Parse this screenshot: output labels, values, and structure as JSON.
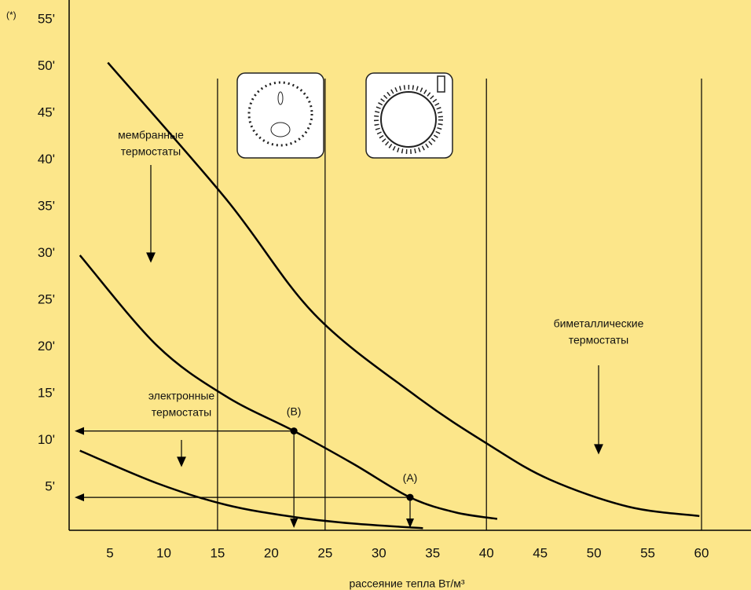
{
  "chart_data": {
    "type": "line",
    "x_label": "рассеяние тепла Вт/м³",
    "y_note": "(*)",
    "xlim": [
      1.2,
      64.6
    ],
    "ylim": [
      0,
      57
    ],
    "xticks": [
      5,
      10,
      15,
      20,
      25,
      30,
      35,
      40,
      45,
      50,
      55,
      60
    ],
    "yticks": [
      {
        "value": 5,
        "label": "5'"
      },
      {
        "value": 10,
        "label": "10'"
      },
      {
        "value": 15,
        "label": "15'"
      },
      {
        "value": 20,
        "label": "20'"
      },
      {
        "value": 25,
        "label": "25'"
      },
      {
        "value": 30,
        "label": "30'"
      },
      {
        "value": 35,
        "label": "35'"
      },
      {
        "value": 40,
        "label": "40'"
      },
      {
        "value": 45,
        "label": "45'"
      },
      {
        "value": 50,
        "label": "50'"
      },
      {
        "value": 55,
        "label": "55'"
      }
    ],
    "vlines": [
      15,
      25,
      40,
      60
    ],
    "series": [
      {
        "color": "#000000",
        "x": [
          4.8,
          15.8,
          24,
          33.5,
          40.4,
          45.9,
          53.2,
          59.8
        ],
        "values": [
          50.4,
          35.8,
          23.5,
          14.7,
          9.4,
          5.8,
          2.9,
          1.9
        ]
      },
      {
        "color": "#000000",
        "x": [
          2.2,
          9.4,
          15.8,
          22.1,
          27.6,
          32.9,
          37.1,
          41.0
        ],
        "values": [
          29.8,
          20.1,
          14.7,
          11.0,
          7.5,
          3.9,
          2.3,
          1.6
        ]
      },
      {
        "color": "#000000",
        "x": [
          2.2,
          9.4,
          15.8,
          22.1,
          27.6,
          34.1
        ],
        "values": [
          8.9,
          5.4,
          3.1,
          1.8,
          1.1,
          0.6
        ]
      }
    ],
    "points": [
      {
        "label": "(B)",
        "x": 22.1,
        "y": 11.0
      },
      {
        "label": "(A)",
        "x": 32.9,
        "y": 3.9
      }
    ],
    "annotations": [
      {
        "lines": [
          "мембранные",
          "термостаты"
        ]
      },
      {
        "lines": [
          "электронные",
          "термостаты"
        ]
      },
      {
        "lines": [
          "биметаллические",
          "термостаты"
        ]
      }
    ]
  }
}
